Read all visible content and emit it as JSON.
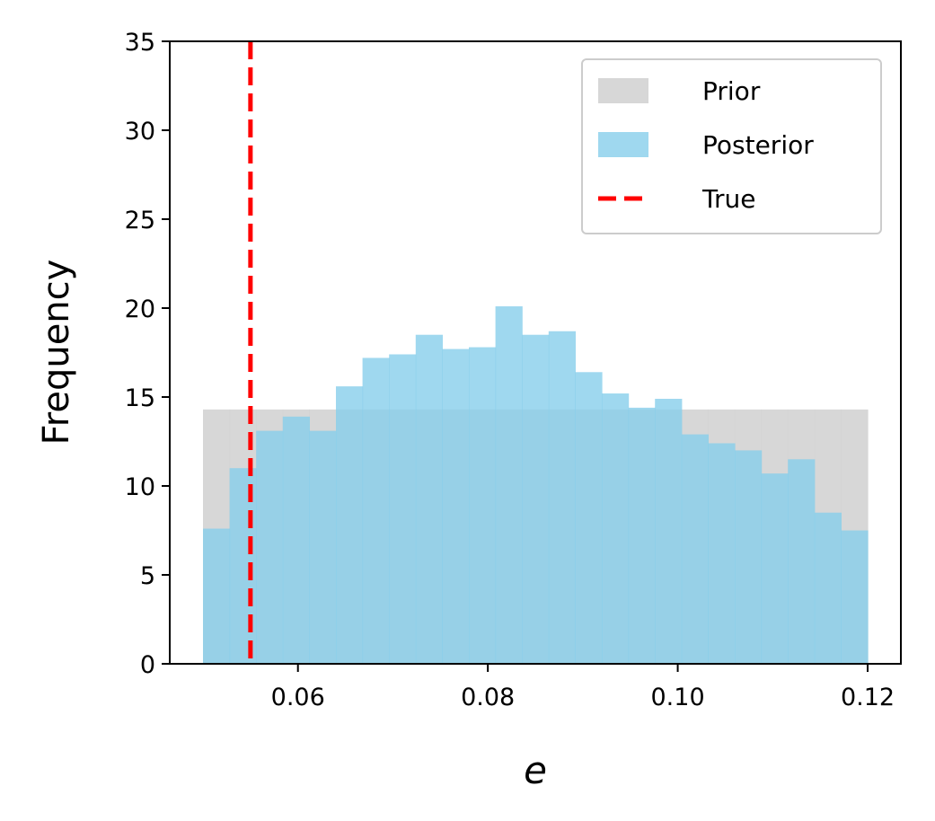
{
  "chart_data": {
    "type": "histogram",
    "xlabel": "e",
    "ylabel": "Frequency",
    "xlim": [
      0.0465,
      0.1235
    ],
    "ylim": [
      0,
      35
    ],
    "xticks": [
      0.06,
      0.08,
      0.1,
      0.12
    ],
    "xtick_labels": [
      "0.06",
      "0.08",
      "0.10",
      "0.12"
    ],
    "yticks": [
      0,
      5,
      10,
      15,
      20,
      25,
      30,
      35
    ],
    "ytick_labels": [
      "0",
      "5",
      "10",
      "15",
      "20",
      "25",
      "30",
      "35"
    ],
    "bin_edges": [
      0.05,
      0.0528,
      0.0556,
      0.0584,
      0.0612,
      0.064,
      0.0668,
      0.0696,
      0.0724,
      0.0752,
      0.078,
      0.0808,
      0.0836,
      0.0864,
      0.0892,
      0.092,
      0.0948,
      0.0976,
      0.1004,
      0.1032,
      0.106,
      0.1088,
      0.1116,
      0.1144,
      0.1172,
      0.12
    ],
    "series": [
      {
        "name": "Prior",
        "kind": "uniform",
        "range": [
          0.05,
          0.12
        ],
        "value": 14.3,
        "color": "#d3d3d3"
      },
      {
        "name": "Posterior",
        "kind": "bins",
        "values": [
          7.6,
          11.0,
          13.1,
          13.9,
          13.1,
          15.6,
          17.2,
          17.4,
          18.5,
          17.7,
          17.8,
          20.1,
          18.5,
          18.7,
          16.4,
          15.2,
          14.4,
          14.9,
          12.9,
          12.4,
          12.0,
          10.7,
          11.5,
          8.5,
          7.5
        ],
        "color": "#87ceeb"
      },
      {
        "name": "True",
        "kind": "vline",
        "x": 0.055,
        "color": "#ff0000"
      }
    ],
    "legend": {
      "placement": "top-right",
      "entries": [
        "Prior",
        "Posterior",
        "True"
      ]
    },
    "grid": false
  }
}
